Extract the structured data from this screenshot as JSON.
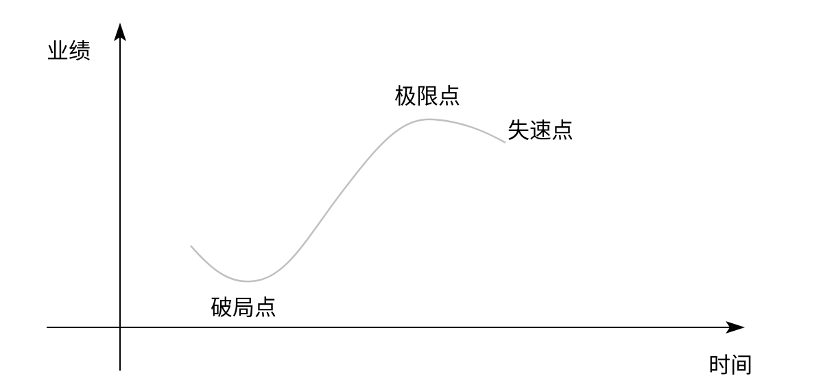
{
  "axes": {
    "y_label": "业绩",
    "x_label": "时间"
  },
  "annotations": {
    "breakthrough": "破局点",
    "limit": "极限点",
    "stall": "失速点"
  },
  "colors": {
    "axis": "#000000",
    "curve": "#c0c0c0"
  }
}
